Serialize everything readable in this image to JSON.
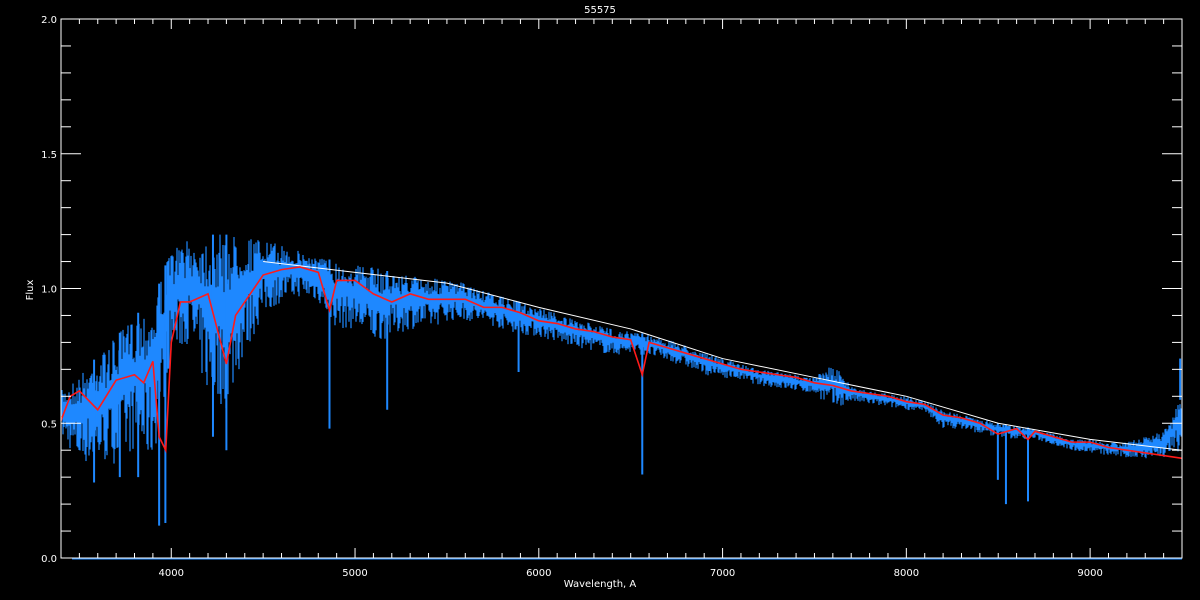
{
  "chart_data": {
    "type": "line",
    "title": "55575",
    "xlabel": "Wavelength, A",
    "ylabel": "Flux",
    "xlim": [
      3400,
      9500
    ],
    "ylim": [
      0.0,
      2.0
    ],
    "x_ticks": [
      4000,
      5000,
      6000,
      7000,
      8000,
      9000
    ],
    "x_tick_labels": [
      "4000",
      "5000",
      "6000",
      "7000",
      "8000",
      "9000"
    ],
    "x_minor_step": 100,
    "y_ticks": [
      0.0,
      0.5,
      1.0,
      1.5,
      2.0
    ],
    "y_tick_labels": [
      "0.0",
      "0.5",
      "1.0",
      "1.5",
      "2.0"
    ],
    "y_minor_step": 0.1,
    "grid": false,
    "background": "#000000",
    "axis_color": "#ffffff",
    "series": [
      {
        "style": "blue-spectrum",
        "color": "#1e88ff",
        "x": [
          3400,
          3500,
          3600,
          3700,
          3800,
          3900,
          4000,
          4100,
          4200,
          4300,
          4400,
          4500,
          4600,
          4700,
          4800,
          4900,
          5000,
          5100,
          5200,
          5300,
          5400,
          5500,
          5600,
          5700,
          5800,
          5900,
          6000,
          6100,
          6200,
          6300,
          6400,
          6500,
          6600,
          6700,
          6800,
          6900,
          7000,
          7100,
          7200,
          7300,
          7400,
          7500,
          7600,
          7700,
          7800,
          7900,
          8000,
          8100,
          8200,
          8300,
          8400,
          8500,
          8600,
          8700,
          8800,
          8900,
          9000,
          9100,
          9200,
          9300,
          9400,
          9500
        ],
        "upper": [
          0.62,
          0.68,
          0.75,
          0.82,
          0.9,
          0.95,
          1.15,
          1.18,
          1.2,
          1.2,
          1.2,
          1.18,
          1.16,
          1.14,
          1.12,
          1.1,
          1.09,
          1.08,
          1.06,
          1.05,
          1.04,
          1.03,
          1.02,
          0.99,
          0.97,
          0.95,
          0.93,
          0.91,
          0.88,
          0.87,
          0.85,
          0.84,
          0.83,
          0.81,
          0.79,
          0.76,
          0.74,
          0.72,
          0.7,
          0.69,
          0.68,
          0.67,
          0.72,
          0.64,
          0.62,
          0.61,
          0.6,
          0.58,
          0.55,
          0.53,
          0.52,
          0.5,
          0.49,
          0.48,
          0.46,
          0.44,
          0.44,
          0.43,
          0.43,
          0.45,
          0.47,
          0.6
        ],
        "lower": [
          0.45,
          0.35,
          0.35,
          0.35,
          0.4,
          0.35,
          0.75,
          0.8,
          0.6,
          0.55,
          0.75,
          0.9,
          0.95,
          0.97,
          0.95,
          0.85,
          0.85,
          0.8,
          0.82,
          0.85,
          0.85,
          0.88,
          0.88,
          0.87,
          0.85,
          0.83,
          0.82,
          0.8,
          0.78,
          0.77,
          0.75,
          0.76,
          0.75,
          0.73,
          0.71,
          0.68,
          0.67,
          0.66,
          0.64,
          0.63,
          0.62,
          0.61,
          0.55,
          0.58,
          0.57,
          0.56,
          0.55,
          0.54,
          0.48,
          0.48,
          0.46,
          0.45,
          0.44,
          0.44,
          0.42,
          0.4,
          0.39,
          0.38,
          0.37,
          0.37,
          0.37,
          0.4
        ],
        "lines": [
          [
            3580,
            0.28
          ],
          [
            3720,
            0.3
          ],
          [
            3820,
            0.3
          ],
          [
            3934,
            0.12
          ],
          [
            3968,
            0.13
          ],
          [
            4227,
            0.45
          ],
          [
            4300,
            0.4
          ],
          [
            4861,
            0.48
          ],
          [
            5175,
            0.55
          ],
          [
            5890,
            0.69
          ],
          [
            6563,
            0.31
          ],
          [
            8498,
            0.29
          ],
          [
            8542,
            0.2
          ],
          [
            8662,
            0.21
          ],
          [
            9490,
            0.74
          ]
        ],
        "baseline": 0.0
      },
      {
        "style": "white-spectrum",
        "color": "#ffffff",
        "x": [
          4500,
          5000,
          5500,
          6000,
          6500,
          7000,
          7500,
          8000,
          8200,
          8500,
          9000,
          9500
        ],
        "y": [
          1.1,
          1.06,
          1.02,
          0.93,
          0.85,
          0.74,
          0.67,
          0.6,
          0.56,
          0.5,
          0.44,
          0.4
        ]
      },
      {
        "style": "red-model",
        "color": "#ff1a1a",
        "x": [
          3400,
          3450,
          3500,
          3600,
          3700,
          3800,
          3850,
          3900,
          3934,
          3970,
          4000,
          4050,
          4100,
          4200,
          4300,
          4350,
          4400,
          4500,
          4600,
          4700,
          4800,
          4861,
          4900,
          5000,
          5100,
          5200,
          5300,
          5400,
          5500,
          5600,
          5700,
          5800,
          5900,
          6000,
          6100,
          6200,
          6300,
          6400,
          6500,
          6563,
          6600,
          6700,
          6800,
          6900,
          7000,
          7100,
          7200,
          7300,
          7400,
          7500,
          7600,
          7700,
          7800,
          7900,
          8000,
          8100,
          8200,
          8300,
          8400,
          8498,
          8600,
          8662,
          8700,
          8800,
          8900,
          9000,
          9100,
          9200,
          9300,
          9400,
          9500
        ],
        "y": [
          0.51,
          0.6,
          0.62,
          0.55,
          0.66,
          0.68,
          0.65,
          0.73,
          0.45,
          0.4,
          0.8,
          0.95,
          0.95,
          0.98,
          0.72,
          0.9,
          0.95,
          1.05,
          1.07,
          1.08,
          1.06,
          0.92,
          1.03,
          1.03,
          0.98,
          0.95,
          0.98,
          0.96,
          0.96,
          0.96,
          0.93,
          0.93,
          0.91,
          0.88,
          0.87,
          0.85,
          0.84,
          0.82,
          0.81,
          0.68,
          0.8,
          0.78,
          0.76,
          0.74,
          0.72,
          0.7,
          0.69,
          0.68,
          0.67,
          0.65,
          0.64,
          0.62,
          0.61,
          0.6,
          0.58,
          0.57,
          0.53,
          0.52,
          0.5,
          0.46,
          0.48,
          0.44,
          0.47,
          0.45,
          0.43,
          0.43,
          0.41,
          0.4,
          0.39,
          0.38,
          0.37
        ]
      }
    ]
  }
}
